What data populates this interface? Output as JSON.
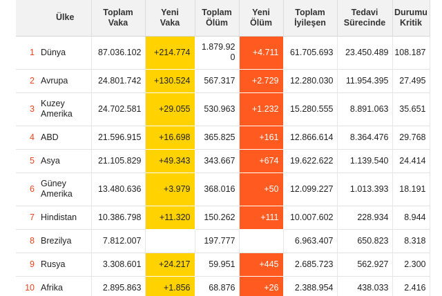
{
  "headers": {
    "ulke": "Ülke",
    "toplam_vaka": [
      "Toplam",
      "Vaka"
    ],
    "yeni_vaka": [
      "Yeni",
      "Vaka"
    ],
    "toplam_olum": [
      "Toplam",
      "Ölüm"
    ],
    "yeni_olum": [
      "Yeni",
      "Ölüm"
    ],
    "toplam_iyilesen": [
      "Toplam",
      "İyileşen"
    ],
    "tedavi_surecinde": [
      "Tedavi",
      "Sürecinde"
    ],
    "durumu_kritik": [
      "Durumu",
      "Kritik"
    ]
  },
  "colors": {
    "new_cases": "#ffd200",
    "new_deaths": "#ff5a1f",
    "index": "#e8441d",
    "header_bg": "#f2f2f2"
  },
  "rows": [
    {
      "idx": "1",
      "name": [
        "Dünya"
      ],
      "toplam_vaka": "87.036.102",
      "yeni_vaka": "+214.774",
      "toplam_olum": [
        "1.879.92",
        "0"
      ],
      "yeni_olum": "+4.711",
      "toplam_iyilesen": "61.705.693",
      "tedavi_surecinde": "23.450.489",
      "durumu_kritik": "108.187"
    },
    {
      "idx": "2",
      "name": [
        "Avrupa"
      ],
      "toplam_vaka": "24.801.742",
      "yeni_vaka": "+130.524",
      "toplam_olum": [
        "567.317"
      ],
      "yeni_olum": "+2.729",
      "toplam_iyilesen": "12.280.030",
      "tedavi_surecinde": "11.954.395",
      "durumu_kritik": "27.495"
    },
    {
      "idx": "3",
      "name": [
        "Kuzey",
        "Amerika"
      ],
      "toplam_vaka": "24.702.581",
      "yeni_vaka": "+29.055",
      "toplam_olum": [
        "530.963"
      ],
      "yeni_olum": "+1.232",
      "toplam_iyilesen": "15.280.555",
      "tedavi_surecinde": "8.891.063",
      "durumu_kritik": "35.651"
    },
    {
      "idx": "4",
      "name": [
        "ABD"
      ],
      "toplam_vaka": "21.596.915",
      "yeni_vaka": "+16.698",
      "toplam_olum": [
        "365.825"
      ],
      "yeni_olum": "+161",
      "toplam_iyilesen": "12.866.614",
      "tedavi_surecinde": "8.364.476",
      "durumu_kritik": "29.768"
    },
    {
      "idx": "5",
      "name": [
        "Asya"
      ],
      "toplam_vaka": "21.105.829",
      "yeni_vaka": "+49.343",
      "toplam_olum": [
        "343.667"
      ],
      "yeni_olum": "+674",
      "toplam_iyilesen": "19.622.622",
      "tedavi_surecinde": "1.139.540",
      "durumu_kritik": "24.414"
    },
    {
      "idx": "6",
      "name": [
        "Güney",
        "Amerika"
      ],
      "toplam_vaka": "13.480.636",
      "yeni_vaka": "+3.979",
      "toplam_olum": [
        "368.016"
      ],
      "yeni_olum": "+50",
      "toplam_iyilesen": "12.099.227",
      "tedavi_surecinde": "1.013.393",
      "durumu_kritik": "18.191"
    },
    {
      "idx": "7",
      "name": [
        "Hindistan"
      ],
      "toplam_vaka": "10.386.798",
      "yeni_vaka": "+11.320",
      "toplam_olum": [
        "150.262"
      ],
      "yeni_olum": "+111",
      "toplam_iyilesen": "10.007.602",
      "tedavi_surecinde": "228.934",
      "durumu_kritik": "8.944"
    },
    {
      "idx": "8",
      "name": [
        "Brezilya"
      ],
      "toplam_vaka": "7.812.007",
      "yeni_vaka": "",
      "toplam_olum": [
        "197.777"
      ],
      "yeni_olum": "",
      "toplam_iyilesen": "6.963.407",
      "tedavi_surecinde": "650.823",
      "durumu_kritik": "8.318"
    },
    {
      "idx": "9",
      "name": [
        "Rusya"
      ],
      "toplam_vaka": "3.308.601",
      "yeni_vaka": "+24.217",
      "toplam_olum": [
        "59.951"
      ],
      "yeni_olum": "+445",
      "toplam_iyilesen": "2.685.723",
      "tedavi_surecinde": "562.927",
      "durumu_kritik": "2.300"
    },
    {
      "idx": "10",
      "name": [
        "Afrika"
      ],
      "toplam_vaka": "2.895.863",
      "yeni_vaka": "+1.856",
      "toplam_olum": [
        "68.876"
      ],
      "yeni_olum": "+26",
      "toplam_iyilesen": "2.388.954",
      "tedavi_surecinde": "438.033",
      "durumu_kritik": "2.416"
    }
  ]
}
